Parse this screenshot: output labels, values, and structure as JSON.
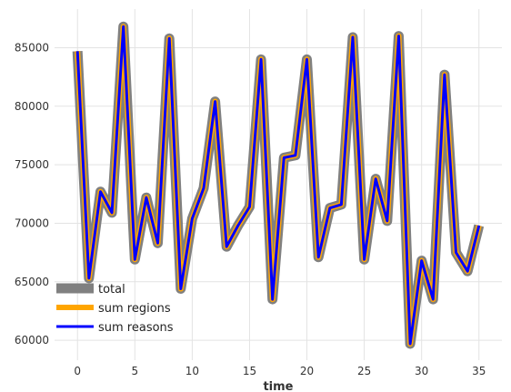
{
  "chart_data": {
    "type": "line",
    "title": "",
    "xlabel": "time",
    "ylabel": "",
    "xlim": [
      -2,
      37
    ],
    "ylim": [
      58300,
      88300
    ],
    "xticks": [
      0,
      5,
      10,
      15,
      20,
      25,
      30,
      35
    ],
    "yticks": [
      60000,
      65000,
      70000,
      75000,
      80000,
      85000
    ],
    "grid": true,
    "legend_position": "lower-left",
    "x": [
      0,
      1,
      2,
      3,
      4,
      5,
      6,
      7,
      8,
      9,
      10,
      11,
      12,
      13,
      14,
      15,
      16,
      17,
      18,
      19,
      20,
      21,
      22,
      23,
      24,
      25,
      26,
      27,
      28,
      29,
      30,
      31,
      32,
      33,
      34,
      35
    ],
    "series": [
      {
        "name": "total",
        "color": "#808080",
        "values": [
          84700,
          65300,
          72700,
          70900,
          86800,
          66900,
          72200,
          68300,
          85800,
          64400,
          70400,
          73000,
          80400,
          68000,
          69800,
          71400,
          84000,
          63500,
          75600,
          75800,
          84000,
          67100,
          71300,
          71600,
          85900,
          66900,
          73800,
          70200,
          86000,
          59700,
          66800,
          63500,
          82700,
          67500,
          65900,
          69800
        ]
      },
      {
        "name": "sum regions",
        "color": "#ffa500",
        "values": [
          84700,
          65300,
          72700,
          70900,
          86800,
          66900,
          72200,
          68300,
          85800,
          64400,
          70400,
          73000,
          80400,
          68000,
          69800,
          71400,
          84000,
          63500,
          75600,
          75800,
          84000,
          67100,
          71300,
          71600,
          85900,
          66900,
          73800,
          70200,
          86000,
          59700,
          66800,
          63500,
          82700,
          67500,
          65900,
          69800
        ]
      },
      {
        "name": "sum reasons",
        "color": "#0000ff",
        "values": [
          84700,
          65300,
          72700,
          70900,
          86800,
          66900,
          72200,
          68300,
          85800,
          64400,
          70400,
          73000,
          80400,
          68000,
          69800,
          71400,
          84000,
          63500,
          75600,
          75800,
          84000,
          67100,
          71300,
          71600,
          85900,
          66900,
          73800,
          70200,
          86000,
          59700,
          66800,
          63500,
          82700,
          67500,
          65900,
          69800
        ]
      }
    ]
  }
}
